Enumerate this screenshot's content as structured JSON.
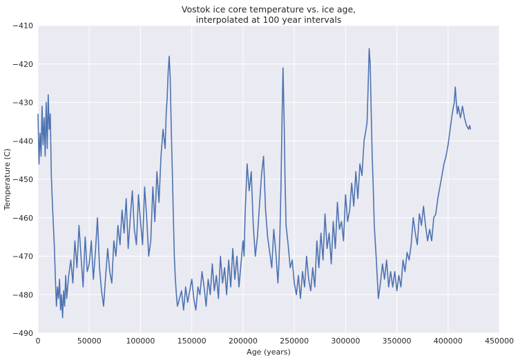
{
  "chart_data": {
    "type": "line",
    "title_lines": [
      "Vostok ice core temperature vs. ice age,",
      "interpolated at 100 year intervals"
    ],
    "xlabel": "Age (years)",
    "ylabel": "Temperature (C)",
    "xlim": [
      0,
      450000
    ],
    "ylim": [
      -490,
      -410
    ],
    "xticks": [
      0,
      50000,
      100000,
      150000,
      200000,
      250000,
      300000,
      350000,
      400000,
      450000
    ],
    "xtick_labels": [
      "0",
      "50000",
      "100000",
      "150000",
      "200000",
      "250000",
      "300000",
      "350000",
      "400000",
      "450000"
    ],
    "yticks": [
      -410,
      -420,
      -430,
      -440,
      -450,
      -460,
      -470,
      -480,
      -490
    ],
    "ytick_labels": [
      "−410",
      "−420",
      "−430",
      "−440",
      "−450",
      "−460",
      "−470",
      "−480",
      "−490"
    ],
    "grid": true,
    "background_color": "#eaeaf2",
    "line_color": "#4c72b0",
    "series": [
      {
        "x": [
          0,
          1000,
          2000,
          3000,
          4000,
          5000,
          6000,
          7000,
          8000,
          9000,
          10000,
          11000,
          12000,
          13000,
          14000,
          15000,
          16000,
          17000,
          18000,
          19000,
          20000,
          21000,
          22000,
          23000,
          24000,
          25000,
          26000,
          27000,
          28000,
          29000,
          30000,
          32000,
          34000,
          36000,
          38000,
          40000,
          42000,
          44000,
          46000,
          48000,
          50000,
          52000,
          54000,
          56000,
          58000,
          60000,
          62000,
          64000,
          66000,
          68000,
          70000,
          72000,
          74000,
          76000,
          78000,
          80000,
          82000,
          84000,
          86000,
          88000,
          90000,
          92000,
          94000,
          96000,
          98000,
          100000,
          102000,
          104000,
          106000,
          108000,
          110000,
          112000,
          114000,
          116000,
          118000,
          120000,
          122000,
          124000,
          125000,
          126000,
          127000,
          128000,
          129000,
          130000,
          131000,
          132000,
          133000,
          134000,
          135000,
          136000,
          138000,
          140000,
          142000,
          144000,
          146000,
          148000,
          150000,
          152000,
          154000,
          156000,
          158000,
          160000,
          162000,
          164000,
          166000,
          168000,
          170000,
          172000,
          174000,
          176000,
          178000,
          180000,
          182000,
          184000,
          186000,
          188000,
          190000,
          192000,
          194000,
          196000,
          198000,
          200000,
          201000,
          202000,
          204000,
          206000,
          208000,
          210000,
          212000,
          214000,
          216000,
          218000,
          220000,
          222000,
          224000,
          226000,
          228000,
          230000,
          232000,
          234000,
          235000,
          236000,
          237000,
          238000,
          239000,
          240000,
          241000,
          242000,
          244000,
          246000,
          248000,
          250000,
          252000,
          254000,
          256000,
          258000,
          260000,
          262000,
          264000,
          266000,
          268000,
          270000,
          272000,
          274000,
          276000,
          278000,
          280000,
          282000,
          284000,
          286000,
          288000,
          290000,
          292000,
          294000,
          296000,
          298000,
          300000,
          302000,
          304000,
          306000,
          308000,
          310000,
          312000,
          314000,
          316000,
          318000,
          320000,
          321000,
          322000,
          323000,
          324000,
          325000,
          326000,
          327000,
          328000,
          330000,
          332000,
          334000,
          336000,
          338000,
          340000,
          342000,
          344000,
          346000,
          348000,
          350000,
          352000,
          354000,
          356000,
          358000,
          360000,
          362000,
          364000,
          366000,
          368000,
          370000,
          372000,
          374000,
          376000,
          378000,
          380000,
          382000,
          384000,
          386000,
          388000,
          390000,
          392000,
          394000,
          396000,
          398000,
          400000,
          402000,
          404000,
          406000,
          407000,
          408000,
          409000,
          410000,
          412000,
          414000,
          416000,
          418000,
          420000,
          421000,
          422000
        ],
        "y": [
          -433,
          -446,
          -438,
          -444,
          -431,
          -441,
          -434,
          -444,
          -430,
          -442,
          -428,
          -437,
          -433,
          -449,
          -456,
          -462,
          -468,
          -476,
          -483,
          -478,
          -481,
          -476,
          -484,
          -480,
          -486,
          -479,
          -483,
          -475,
          -481,
          -478,
          -475,
          -471,
          -477,
          -466,
          -473,
          -462,
          -470,
          -478,
          -465,
          -474,
          -472,
          -466,
          -476,
          -469,
          -460,
          -473,
          -479,
          -483,
          -475,
          -468,
          -474,
          -477,
          -466,
          -470,
          -462,
          -467,
          -458,
          -464,
          -455,
          -468,
          -460,
          -453,
          -463,
          -467,
          -454,
          -461,
          -467,
          -452,
          -460,
          -470,
          -466,
          -452,
          -461,
          -448,
          -456,
          -444,
          -437,
          -442,
          -433,
          -429,
          -422,
          -418,
          -424,
          -437,
          -448,
          -459,
          -470,
          -476,
          -480,
          -483,
          -481,
          -479,
          -484,
          -478,
          -482,
          -479,
          -476,
          -481,
          -484,
          -478,
          -480,
          -474,
          -478,
          -483,
          -476,
          -480,
          -472,
          -479,
          -475,
          -481,
          -470,
          -477,
          -473,
          -480,
          -471,
          -478,
          -468,
          -476,
          -470,
          -478,
          -472,
          -466,
          -470,
          -459,
          -446,
          -453,
          -448,
          -462,
          -470,
          -465,
          -457,
          -449,
          -444,
          -458,
          -465,
          -469,
          -473,
          -463,
          -469,
          -477,
          -472,
          -464,
          -452,
          -435,
          -421,
          -434,
          -451,
          -462,
          -467,
          -473,
          -471,
          -477,
          -480,
          -475,
          -481,
          -474,
          -478,
          -470,
          -476,
          -479,
          -473,
          -478,
          -466,
          -473,
          -464,
          -471,
          -459,
          -468,
          -464,
          -472,
          -461,
          -468,
          -456,
          -463,
          -461,
          -466,
          -454,
          -461,
          -458,
          -451,
          -457,
          -448,
          -455,
          -446,
          -449,
          -440,
          -437,
          -435,
          -426,
          -416,
          -420,
          -432,
          -444,
          -452,
          -462,
          -471,
          -481,
          -477,
          -472,
          -476,
          -471,
          -478,
          -474,
          -478,
          -474,
          -479,
          -475,
          -478,
          -471,
          -474,
          -469,
          -471,
          -467,
          -460,
          -464,
          -467,
          -459,
          -462,
          -457,
          -462,
          -466,
          -463,
          -466,
          -460,
          -459,
          -455,
          -452,
          -449,
          -446,
          -444,
          -441,
          -437,
          -433,
          -430,
          -426,
          -430,
          -433,
          -431,
          -434,
          -431,
          -434,
          -436,
          -437,
          -436,
          -437
        ]
      }
    ]
  }
}
